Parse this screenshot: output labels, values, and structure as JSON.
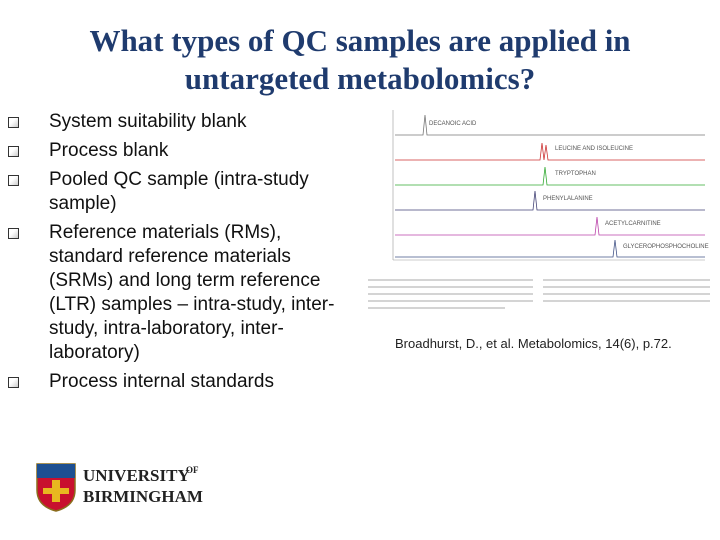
{
  "slide": {
    "title": "What types of QC samples are applied in untargeted metabolomics?",
    "bullets": [
      "System suitability blank",
      "Process blank",
      "Pooled QC sample (intra-study sample)",
      "Reference materials (RMs), standard reference materials (SRMs) and long term reference (LTR) samples – intra-study, inter-study, intra-laboratory, inter-laboratory)",
      "Process internal standards"
    ],
    "figure": {
      "peak_labels": [
        "DECANOIC ACID",
        "LEUCINE AND ISOLEUCINE",
        "TRYPTOPHAN",
        "PHENYLALANINE",
        "ACETYLCARNITINE",
        "GLYCEROPHOSPHOCHOLINE"
      ]
    },
    "citation": "Broadhurst, D., et al. Metabolomics, 14(6), p.72.",
    "logo": {
      "line1": "UNIVERSITY",
      "superscript": "OF",
      "line2": "BIRMINGHAM"
    }
  }
}
